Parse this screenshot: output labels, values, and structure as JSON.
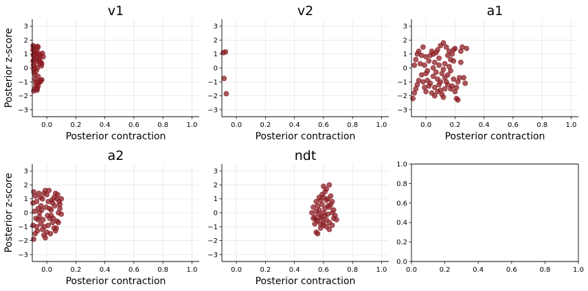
{
  "chart_data": [
    {
      "type": "scatter",
      "title": "v1",
      "xlabel": "Posterior contraction",
      "ylabel": "Posterior z-score",
      "xlim": [
        -0.1,
        1.05
      ],
      "ylim": [
        -3.5,
        3.5
      ],
      "xticks": [
        "0.0",
        "0.2",
        "0.4",
        "0.6",
        "0.8",
        "1.0"
      ],
      "yticks": [
        "−3",
        "−2",
        "−1",
        "0",
        "1",
        "2",
        "3"
      ],
      "grid": true,
      "color": "#8b1e24",
      "points": [
        [
          -0.095,
          1.6
        ],
        [
          -0.09,
          1.5
        ],
        [
          -0.088,
          1.2
        ],
        [
          -0.085,
          1.0
        ],
        [
          -0.08,
          0.9
        ],
        [
          -0.075,
          1.1
        ],
        [
          -0.072,
          0.7
        ],
        [
          -0.068,
          1.3
        ],
        [
          -0.065,
          1.55
        ],
        [
          -0.06,
          1.5
        ],
        [
          -0.058,
          0.95
        ],
        [
          -0.055,
          0.6
        ],
        [
          -0.05,
          0.3
        ],
        [
          -0.048,
          1.0
        ],
        [
          -0.045,
          0.8
        ],
        [
          -0.04,
          0.4
        ],
        [
          -0.038,
          0.15
        ],
        [
          -0.035,
          0.3
        ],
        [
          -0.03,
          1.05
        ],
        [
          -0.025,
          0.8
        ],
        [
          -0.095,
          0.5
        ],
        [
          -0.092,
          0.2
        ],
        [
          -0.09,
          -0.1
        ],
        [
          -0.088,
          -0.3
        ],
        [
          -0.085,
          0.1
        ],
        [
          -0.082,
          -0.5
        ],
        [
          -0.08,
          -0.8
        ],
        [
          -0.078,
          -1.0
        ],
        [
          -0.075,
          -1.2
        ],
        [
          -0.07,
          -1.4
        ],
        [
          -0.068,
          -1.6
        ],
        [
          -0.065,
          -1.5
        ],
        [
          -0.06,
          -1.3
        ],
        [
          -0.058,
          -1.1
        ],
        [
          -0.055,
          -1.0
        ],
        [
          -0.05,
          -0.95
        ],
        [
          -0.045,
          -1.0
        ],
        [
          -0.04,
          -0.9
        ],
        [
          -0.035,
          -0.85
        ],
        [
          -0.09,
          -1.65
        ],
        [
          -0.085,
          -1.5
        ],
        [
          -0.095,
          1.3
        ],
        [
          -0.093,
          0.9
        ],
        [
          -0.088,
          0.6
        ],
        [
          -0.082,
          1.45
        ],
        [
          -0.078,
          0.45
        ],
        [
          -0.072,
          -0.2
        ],
        [
          -0.065,
          0.0
        ],
        [
          -0.06,
          -0.6
        ],
        [
          -0.052,
          0.5
        ]
      ]
    },
    {
      "type": "scatter",
      "title": "v2",
      "xlabel": "Posterior contraction",
      "ylabel": "",
      "xlim": [
        -0.1,
        1.05
      ],
      "ylim": [
        -3.5,
        3.5
      ],
      "xticks": [
        "0.0",
        "0.2",
        "0.4",
        "0.6",
        "0.8",
        "1.0"
      ],
      "yticks": [
        "−3",
        "−2",
        "−1",
        "0",
        "1",
        "2",
        "3"
      ],
      "grid": true,
      "color": "#8b1e24",
      "points": [
        [
          -0.09,
          1.1
        ],
        [
          -0.075,
          1.15
        ],
        [
          -0.085,
          -0.75
        ],
        [
          -0.07,
          -1.85
        ]
      ]
    },
    {
      "type": "scatter",
      "title": "a1",
      "xlabel": "Posterior contraction",
      "ylabel": "",
      "xlim": [
        -0.1,
        1.05
      ],
      "ylim": [
        -3.5,
        3.5
      ],
      "xticks": [
        "0.0",
        "0.2",
        "0.4",
        "0.6",
        "0.8",
        "1.0"
      ],
      "yticks": [
        "−3",
        "−2",
        "−1",
        "0",
        "1",
        "2",
        "3"
      ],
      "grid": true,
      "color": "#8b1e24",
      "points": [
        [
          -0.09,
          -2.2
        ],
        [
          -0.08,
          -1.8
        ],
        [
          -0.07,
          -1.5
        ],
        [
          -0.06,
          -1.2
        ],
        [
          -0.05,
          -0.9
        ],
        [
          -0.08,
          0.2
        ],
        [
          -0.07,
          0.6
        ],
        [
          -0.06,
          1.0
        ],
        [
          -0.05,
          1.2
        ],
        [
          -0.04,
          0.3
        ],
        [
          -0.03,
          -0.5
        ],
        [
          -0.02,
          -1.0
        ],
        [
          -0.01,
          -1.4
        ],
        [
          0.0,
          -1.7
        ],
        [
          0.01,
          -0.2
        ],
        [
          0.02,
          0.5
        ],
        [
          0.03,
          0.9
        ],
        [
          0.04,
          1.2
        ],
        [
          0.05,
          1.0
        ],
        [
          0.06,
          0.4
        ],
        [
          0.07,
          -0.3
        ],
        [
          0.08,
          -0.8
        ],
        [
          0.09,
          -1.2
        ],
        [
          0.1,
          -1.6
        ],
        [
          0.11,
          -1.9
        ],
        [
          0.12,
          -2.1
        ],
        [
          0.13,
          -1.5
        ],
        [
          0.14,
          -1.0
        ],
        [
          0.15,
          -0.5
        ],
        [
          0.16,
          0.1
        ],
        [
          0.17,
          0.6
        ],
        [
          0.18,
          1.0
        ],
        [
          0.19,
          1.3
        ],
        [
          0.2,
          1.4
        ],
        [
          0.21,
          -2.2
        ],
        [
          0.22,
          -2.3
        ],
        [
          0.23,
          -0.7
        ],
        [
          0.24,
          1.2
        ],
        [
          0.25,
          1.5
        ],
        [
          0.28,
          1.4
        ],
        [
          0.26,
          -0.7
        ],
        [
          0.27,
          -1.1
        ],
        [
          0.12,
          1.8
        ],
        [
          0.1,
          1.6
        ],
        [
          0.08,
          1.3
        ],
        [
          0.06,
          -1.4
        ],
        [
          0.04,
          -1.8
        ],
        [
          0.02,
          -1.3
        ],
        [
          0.0,
          0.8
        ],
        [
          -0.02,
          1.5
        ],
        [
          0.15,
          0.9
        ],
        [
          0.17,
          -0.2
        ],
        [
          0.19,
          -0.8
        ],
        [
          0.13,
          0.3
        ],
        [
          0.11,
          -0.4
        ],
        [
          0.09,
          0.7
        ],
        [
          0.07,
          1.1
        ],
        [
          0.05,
          -0.6
        ],
        [
          0.03,
          -1.1
        ],
        [
          0.01,
          -0.9
        ],
        [
          0.14,
          1.5
        ],
        [
          0.16,
          1.2
        ],
        [
          0.18,
          -1.3
        ],
        [
          0.2,
          -1.7
        ],
        [
          0.22,
          -1.0
        ],
        [
          0.24,
          0.4
        ],
        [
          0.12,
          -0.1
        ],
        [
          0.1,
          -1.0
        ],
        [
          0.08,
          -1.7
        ],
        [
          0.06,
          -2.0
        ],
        [
          -0.01,
          0.2
        ],
        [
          -0.03,
          0.9
        ],
        [
          0.0,
          -0.4
        ],
        [
          0.05,
          0.0
        ],
        [
          0.09,
          0.2
        ],
        [
          0.13,
          -0.7
        ],
        [
          0.17,
          -1.5
        ],
        [
          0.21,
          -1.4
        ],
        [
          0.19,
          0.5
        ],
        [
          0.15,
          -1.2
        ]
      ]
    },
    {
      "type": "scatter",
      "title": "a2",
      "xlabel": "Posterior contraction",
      "ylabel": "Posterior z-score",
      "xlim": [
        -0.1,
        1.05
      ],
      "ylim": [
        -3.5,
        3.5
      ],
      "xticks": [
        "0.0",
        "0.2",
        "0.4",
        "0.6",
        "0.8",
        "1.0"
      ],
      "yticks": [
        "−3",
        "−2",
        "−1",
        "0",
        "1",
        "2",
        "3"
      ],
      "grid": true,
      "color": "#8b1e24",
      "points": [
        [
          -0.09,
          -1.9
        ],
        [
          -0.08,
          -1.5
        ],
        [
          -0.07,
          -1.0
        ],
        [
          -0.06,
          -0.5
        ],
        [
          -0.05,
          0.0
        ],
        [
          -0.04,
          0.5
        ],
        [
          -0.03,
          1.0
        ],
        [
          -0.02,
          1.4
        ],
        [
          -0.01,
          1.6
        ],
        [
          0.0,
          1.3
        ],
        [
          0.01,
          0.8
        ],
        [
          0.02,
          0.3
        ],
        [
          0.03,
          -0.2
        ],
        [
          0.04,
          -0.7
        ],
        [
          0.05,
          -1.1
        ],
        [
          0.06,
          -1.3
        ],
        [
          0.07,
          -0.6
        ],
        [
          0.08,
          0.0
        ],
        [
          0.09,
          0.6
        ],
        [
          0.1,
          1.0
        ],
        [
          -0.09,
          1.5
        ],
        [
          -0.08,
          1.2
        ],
        [
          -0.07,
          0.8
        ],
        [
          -0.06,
          0.3
        ],
        [
          -0.05,
          -0.3
        ],
        [
          -0.04,
          -0.8
        ],
        [
          -0.03,
          -1.2
        ],
        [
          -0.02,
          -1.6
        ],
        [
          -0.01,
          -1.8
        ],
        [
          0.0,
          -1.4
        ],
        [
          0.01,
          -0.9
        ],
        [
          0.02,
          -0.4
        ],
        [
          0.03,
          0.2
        ],
        [
          0.04,
          0.7
        ],
        [
          0.05,
          1.1
        ],
        [
          0.06,
          1.4
        ],
        [
          0.07,
          1.0
        ],
        [
          0.08,
          -0.7
        ],
        [
          0.09,
          0.3
        ],
        [
          0.1,
          -0.1
        ],
        [
          -0.085,
          0.1
        ],
        [
          -0.075,
          -0.4
        ],
        [
          -0.065,
          -1.3
        ],
        [
          -0.055,
          1.4
        ],
        [
          -0.045,
          1.1
        ],
        [
          -0.035,
          0.2
        ],
        [
          -0.025,
          -0.5
        ],
        [
          -0.015,
          -1.0
        ],
        [
          -0.005,
          0.4
        ],
        [
          0.005,
          -0.2
        ],
        [
          0.015,
          1.6
        ],
        [
          0.025,
          -1.5
        ],
        [
          0.035,
          0.9
        ],
        [
          0.045,
          -0.4
        ],
        [
          0.055,
          0.5
        ],
        [
          0.065,
          -1.1
        ],
        [
          0.075,
          1.3
        ],
        [
          0.085,
          0.8
        ],
        [
          -0.095,
          -0.9
        ],
        [
          -0.095,
          0.7
        ]
      ]
    },
    {
      "type": "scatter",
      "title": "ndt",
      "xlabel": "Posterior contraction",
      "ylabel": "",
      "xlim": [
        -0.1,
        1.05
      ],
      "ylim": [
        -3.5,
        3.5
      ],
      "xticks": [
        "0.0",
        "0.2",
        "0.4",
        "0.6",
        "0.8",
        "1.0"
      ],
      "yticks": [
        "−3",
        "−2",
        "−1",
        "0",
        "1",
        "2",
        "3"
      ],
      "grid": true,
      "color": "#8b1e24",
      "points": [
        [
          0.55,
          -1.4
        ],
        [
          0.56,
          -1.5
        ],
        [
          0.58,
          -1.1
        ],
        [
          0.54,
          -0.8
        ],
        [
          0.53,
          -0.4
        ],
        [
          0.52,
          0.0
        ],
        [
          0.53,
          0.4
        ],
        [
          0.55,
          0.8
        ],
        [
          0.57,
          1.1
        ],
        [
          0.59,
          1.3
        ],
        [
          0.61,
          1.5
        ],
        [
          0.6,
          1.9
        ],
        [
          0.64,
          2.0
        ],
        [
          0.62,
          1.7
        ],
        [
          0.63,
          1.0
        ],
        [
          0.65,
          0.6
        ],
        [
          0.67,
          0.2
        ],
        [
          0.68,
          -0.2
        ],
        [
          0.69,
          -0.5
        ],
        [
          0.66,
          -0.9
        ],
        [
          0.64,
          -1.2
        ],
        [
          0.62,
          -1.0
        ],
        [
          0.6,
          -0.7
        ],
        [
          0.58,
          -0.3
        ],
        [
          0.57,
          0.2
        ],
        [
          0.59,
          0.6
        ],
        [
          0.61,
          0.3
        ],
        [
          0.63,
          -0.1
        ],
        [
          0.62,
          -0.5
        ],
        [
          0.6,
          0.0
        ],
        [
          0.56,
          0.5
        ],
        [
          0.55,
          0.1
        ],
        [
          0.54,
          -0.3
        ],
        [
          0.56,
          -0.6
        ],
        [
          0.58,
          0.9
        ],
        [
          0.6,
          1.1
        ],
        [
          0.65,
          1.2
        ],
        [
          0.66,
          0.8
        ],
        [
          0.67,
          -0.4
        ],
        [
          0.64,
          0.4
        ],
        [
          0.58,
          -0.8
        ],
        [
          0.59,
          -0.4
        ],
        [
          0.61,
          -0.2
        ],
        [
          0.63,
          0.5
        ],
        [
          0.62,
          0.9
        ],
        [
          0.57,
          -0.1
        ],
        [
          0.55,
          -0.5
        ],
        [
          0.6,
          -0.9
        ],
        [
          0.66,
          0.0
        ],
        [
          0.64,
          -0.7
        ]
      ]
    },
    {
      "type": "empty",
      "title": "",
      "xlim": [
        0.0,
        1.0
      ],
      "ylim": [
        0.0,
        1.0
      ],
      "xticks": [
        "0.0",
        "0.2",
        "0.4",
        "0.6",
        "0.8",
        "1.0"
      ],
      "yticks": [
        "0.0",
        "0.2",
        "0.4",
        "0.6",
        "0.8",
        "1.0"
      ],
      "grid": false,
      "points": []
    }
  ]
}
